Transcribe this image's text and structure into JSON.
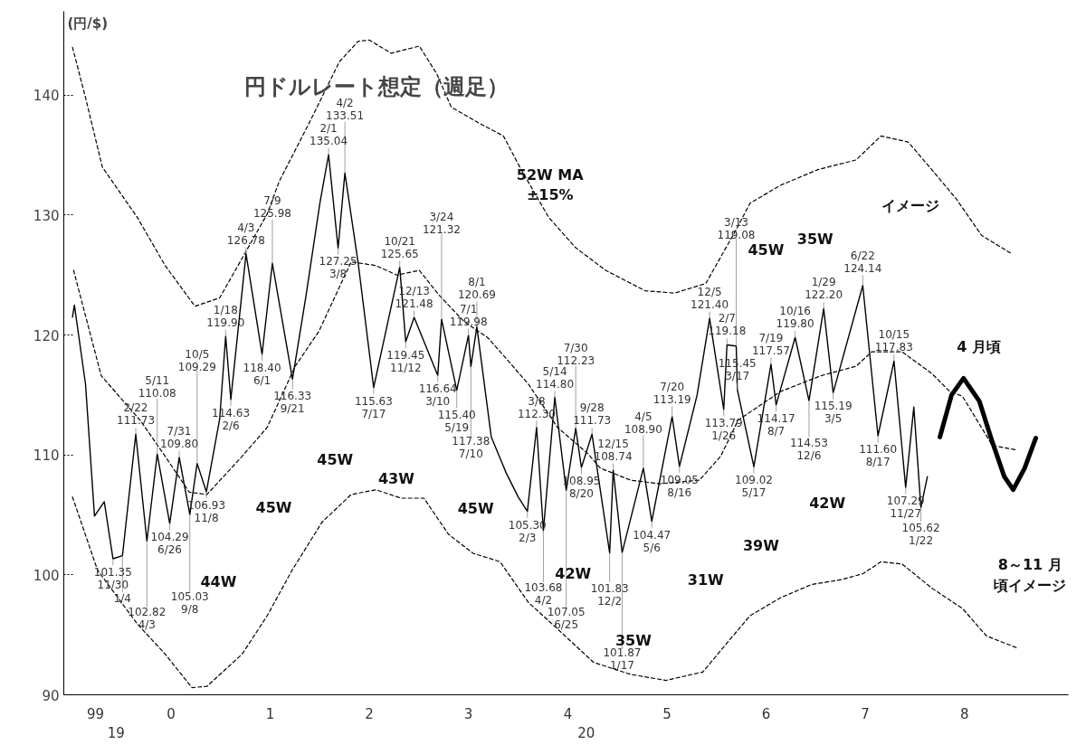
{
  "chart_data": {
    "type": "line",
    "title": "円ドルレート想定（週足）",
    "ylabel": "(円/$)",
    "xlim": [
      "1999-06-02",
      "2009-07-18"
    ],
    "ylim": [
      90,
      147
    ],
    "xticks": [
      {
        "value": "1999-09-27",
        "label": "99"
      },
      {
        "value": "2000-07-01",
        "label": "0"
      },
      {
        "value": "2001-07-01",
        "label": "1"
      },
      {
        "value": "2002-07-01",
        "label": "2"
      },
      {
        "value": "2003-07-01",
        "label": "3"
      },
      {
        "value": "2004-07-01",
        "label": "4"
      },
      {
        "value": "2005-07-01",
        "label": "5"
      },
      {
        "value": "2006-07-01",
        "label": "6"
      },
      {
        "value": "2007-07-01",
        "label": "7"
      },
      {
        "value": "2008-07-01",
        "label": "8"
      }
    ],
    "yticks": [
      90,
      100,
      110,
      120,
      130,
      140
    ],
    "grid": false,
    "marker": "none",
    "series": [
      {
        "color": "#000000",
        "line_style": "solid",
        "x": [
          "1999-07-04",
          "1999-07-11",
          "1999-08-21",
          "1999-09-23",
          "1999-10-29",
          "1999-11-30",
          "2000-01-04",
          "2000-02-22",
          "2000-04-03",
          "2000-05-11",
          "2000-06-26",
          "2000-07-31",
          "2000-09-08",
          "2000-10-05",
          "2000-11-08",
          "2000-12-27",
          "2001-01-18",
          "2001-02-06",
          "2001-04-03",
          "2001-06-01",
          "2001-07-09",
          "2001-09-21",
          "2001-11-10",
          "2001-12-31",
          "2002-02-01",
          "2002-03-08",
          "2002-04-02",
          "2002-05-21",
          "2002-07-17",
          "2002-10-21",
          "2002-11-12",
          "2002-12-13",
          "2003-03-10",
          "2003-03-24",
          "2003-05-19",
          "2003-07-01",
          "2003-07-10",
          "2003-08-01",
          "2003-09-23",
          "2003-11-17",
          "2003-12-31",
          "2004-02-03",
          "2004-03-08",
          "2004-04-02",
          "2004-05-14",
          "2004-06-25",
          "2004-07-30",
          "2004-08-20",
          "2004-09-28",
          "2004-12-02",
          "2004-12-15",
          "2005-01-17",
          "2005-04-05",
          "2005-05-06",
          "2005-07-20",
          "2005-08-16",
          "2005-10-20",
          "2005-12-05",
          "2006-01-26",
          "2006-02-07",
          "2006-03-13",
          "2006-03-17",
          "2006-05-17",
          "2006-07-19",
          "2006-08-07",
          "2006-10-16",
          "2006-12-06",
          "2007-01-29",
          "2007-03-05",
          "2007-06-22",
          "2007-08-17",
          "2007-10-15",
          "2007-11-27",
          "2007-12-27",
          "2008-01-22",
          "2008-02-15"
        ],
        "values": [
          121.5,
          122.5,
          115.9,
          104.9,
          106.1,
          101.35,
          101.6,
          111.73,
          102.82,
          110.08,
          104.29,
          109.8,
          105.03,
          109.29,
          106.93,
          113,
          119.9,
          114.63,
          126.78,
          118.4,
          125.98,
          116.33,
          123.3,
          131,
          135.04,
          127.25,
          133.51,
          126,
          115.63,
          125.65,
          119.45,
          121.48,
          116.64,
          121.32,
          115.4,
          119.98,
          117.38,
          120.69,
          111.5,
          108.5,
          106.5,
          105.3,
          112.3,
          103.68,
          114.8,
          107.05,
          112.23,
          108.95,
          111.73,
          101.83,
          108.74,
          101.87,
          108.9,
          104.47,
          113.19,
          109.05,
          115,
          121.4,
          113.79,
          119.18,
          119.08,
          115.45,
          109.02,
          117.57,
          114.17,
          119.8,
          114.53,
          122.2,
          115.19,
          124.14,
          111.6,
          117.83,
          107.29,
          114,
          105.62,
          108.2
        ]
      },
      {
        "color": "#000000",
        "line_style": "dashed",
        "x": [
          "1999-07-04",
          "1999-08-21",
          "1999-10-22",
          "2000-02-28",
          "2000-06-09",
          "2000-09-27",
          "2000-12-27",
          "2001-06-20",
          "2001-08-03",
          "2001-11-24",
          "2002-03-13",
          "2002-05-21",
          "2002-07-01",
          "2002-09-20",
          "2003-01-01",
          "2003-03-06",
          "2003-04-29",
          "2003-08-07",
          "2003-11-07",
          "2004-01-11",
          "2004-04-22",
          "2004-07-29",
          "2004-11-17",
          "2005-04-11",
          "2005-07-29",
          "2005-11-21",
          "2006-03-13",
          "2006-05-03",
          "2006-08-24",
          "2007-01-08",
          "2007-05-28",
          "2007-08-28",
          "2007-12-06",
          "2008-03-02",
          "2008-06-02",
          "2008-09-02",
          "2008-12-20"
        ],
        "values": [
          144,
          139.8,
          134,
          129.8,
          125.8,
          122.4,
          123.1,
          130.1,
          132.8,
          137.8,
          142.8,
          144.5,
          144.6,
          143.5,
          144.1,
          141.8,
          139,
          137.7,
          136.6,
          133.8,
          129.8,
          127.3,
          125.4,
          123.7,
          123.5,
          124.3,
          128.8,
          131,
          132.5,
          133.8,
          134.6,
          136.6,
          136.1,
          133.8,
          131.3,
          128.3,
          126.8
        ]
      },
      {
        "color": "#000000",
        "line_style": "dashed",
        "x": [
          "1999-07-08",
          "1999-10-18",
          "2000-03-09",
          "2000-06-09",
          "2000-09-06",
          "2000-11-10",
          "2001-03-20",
          "2001-06-20",
          "2001-10-01",
          "2001-12-27",
          "2002-04-25",
          "2002-07-25",
          "2002-10-11",
          "2003-01-01",
          "2003-03-16",
          "2003-06-16",
          "2003-09-09",
          "2003-11-07",
          "2004-02-07",
          "2004-05-24",
          "2004-09-13",
          "2004-10-29",
          "2005-02-17",
          "2005-06-06",
          "2005-10-29",
          "2006-01-15",
          "2006-03-20",
          "2006-08-24",
          "2007-01-18",
          "2007-05-28",
          "2007-07-25",
          "2007-11-14",
          "2008-03-02",
          "2008-05-07",
          "2008-06-23",
          "2008-10-11",
          "2009-01-11"
        ],
        "values": [
          125.4,
          116.6,
          112.9,
          109.9,
          106.9,
          106.7,
          109.9,
          112.3,
          117.4,
          120.3,
          126.1,
          125.8,
          125,
          125.4,
          123.3,
          121.1,
          119.8,
          118.3,
          115.9,
          112.3,
          110.1,
          108.9,
          107.9,
          107.6,
          107.9,
          109.9,
          112.9,
          115.3,
          116.6,
          117.4,
          118.6,
          118.6,
          116.8,
          115.3,
          114.9,
          110.8,
          110.4
        ]
      },
      {
        "color": "#000000",
        "line_style": "dashed",
        "x": [
          "1999-07-04",
          "1999-10-04",
          "2000-02-28",
          "2000-06-09",
          "2000-09-16",
          "2000-11-10",
          "2001-03-20",
          "2001-06-20",
          "2001-09-20",
          "2002-01-08",
          "2002-04-25",
          "2002-07-25",
          "2002-10-25",
          "2003-01-18",
          "2003-04-18",
          "2003-07-18",
          "2003-10-25",
          "2004-02-07",
          "2004-05-14",
          "2004-10-04",
          "2005-02-17",
          "2005-06-27",
          "2005-11-10",
          "2006-02-10",
          "2006-05-03",
          "2006-08-24",
          "2006-12-16",
          "2007-04-04",
          "2007-06-23",
          "2007-08-28",
          "2007-11-14",
          "2008-03-02",
          "2008-06-23",
          "2008-09-20",
          "2009-01-11"
        ],
        "values": [
          106.5,
          100.4,
          95.9,
          93.4,
          90.6,
          90.7,
          93.4,
          96.6,
          100.4,
          104.4,
          106.7,
          107.1,
          106.4,
          106.4,
          103.4,
          101.8,
          101.1,
          97.7,
          95.7,
          92.7,
          91.7,
          91.2,
          91.9,
          94.4,
          96.6,
          98.1,
          99.2,
          99.6,
          100.1,
          101.1,
          100.9,
          98.9,
          97.2,
          94.9,
          93.9
        ]
      },
      {
        "color": "#000000",
        "line_style": "solid",
        "x": [
          "2008-04-01",
          "2008-05-14",
          "2008-06-27",
          "2008-08-24",
          "2008-10-11",
          "2008-11-24",
          "2008-12-27",
          "2009-02-07",
          "2009-03-20"
        ],
        "values": [
          111.5,
          115.0,
          116.4,
          114.5,
          111.1,
          108.2,
          107.1,
          108.9,
          111.4
        ]
      }
    ],
    "annotations": [
      {
        "text": "2/22\n111.73",
        "x": "2000-02-22",
        "y": 111.73
      },
      {
        "text": "5/11\n110.08",
        "x": "2000-05-11",
        "y": 110.08
      },
      {
        "text": "7/31\n109.80",
        "x": "2000-07-31",
        "y": 109.8
      },
      {
        "text": "10/5\n109.29",
        "x": "2000-10-05",
        "y": 109.29
      },
      {
        "text": "114.63\n2/6",
        "x": "2001-02-06",
        "y": 114.63
      },
      {
        "text": "106.93\n11/8",
        "x": "2000-11-08",
        "y": 106.93
      },
      {
        "text": "105.03\n9/8",
        "x": "2000-09-08",
        "y": 105.03
      },
      {
        "text": "1/4",
        "x": "2000-01-04",
        "y": 101.6
      },
      {
        "text": "104.29\n6/26",
        "x": "2000-06-26",
        "y": 104.29
      },
      {
        "text": "102.82\n4/3",
        "x": "2000-04-03",
        "y": 102.82
      },
      {
        "text": "101.35\n11/30",
        "x": "1999-11-30",
        "y": 101.35
      },
      {
        "text": "4/3\n126.78",
        "x": "2001-04-03",
        "y": 126.78
      },
      {
        "text": "7/9\n125.98",
        "x": "2001-07-09",
        "y": 125.98
      },
      {
        "text": "1/18\n119.90",
        "x": "2001-01-18",
        "y": 119.9
      },
      {
        "text": "118.40\n6/1",
        "x": "2001-06-01",
        "y": 118.4
      },
      {
        "text": "116.33\n9/21",
        "x": "2001-09-21",
        "y": 116.33
      },
      {
        "text": "2/1\n135.04",
        "x": "2002-02-01",
        "y": 135.04
      },
      {
        "text": "4/2\n133.51",
        "x": "2002-04-02",
        "y": 133.51
      },
      {
        "text": "127.25\n3/8",
        "x": "2002-03-08",
        "y": 127.25
      },
      {
        "text": "115.63\n7/17",
        "x": "2002-07-17",
        "y": 115.63
      },
      {
        "text": "10/21\n125.65",
        "x": "2002-10-21",
        "y": 125.65
      },
      {
        "text": "3/24\n121.32",
        "x": "2003-03-24",
        "y": 121.32
      },
      {
        "text": "12/13\n121.48",
        "x": "2002-12-13",
        "y": 121.48
      },
      {
        "text": "8/1\n120.69",
        "x": "2003-08-01",
        "y": 120.69
      },
      {
        "text": "7/1\n119.98",
        "x": "2003-07-01",
        "y": 119.98
      },
      {
        "text": "119.45\n11/12",
        "x": "2002-11-12",
        "y": 119.45
      },
      {
        "text": "117.38\n7/10",
        "x": "2003-07-10",
        "y": 117.38
      },
      {
        "text": "116.64\n3/10",
        "x": "2003-03-10",
        "y": 116.64
      },
      {
        "text": "115.40\n5/19",
        "x": "2003-05-19",
        "y": 115.4
      },
      {
        "text": "3/8\n112.30",
        "x": "2004-03-08",
        "y": 112.3
      },
      {
        "text": "5/14\n114.80",
        "x": "2004-05-14",
        "y": 114.8
      },
      {
        "text": "7/30\n112.23",
        "x": "2004-07-30",
        "y": 112.23
      },
      {
        "text": "9/28\n111.73",
        "x": "2004-09-28",
        "y": 111.73
      },
      {
        "text": "12/15\n108.74",
        "x": "2004-12-15",
        "y": 108.74
      },
      {
        "text": "108.95\n8/20",
        "x": "2004-08-20",
        "y": 108.95
      },
      {
        "text": "107.05\n6/25",
        "x": "2004-06-25",
        "y": 107.05
      },
      {
        "text": "105.30\n2/3",
        "x": "2004-02-03",
        "y": 105.3
      },
      {
        "text": "103.68\n4/2",
        "x": "2004-04-02",
        "y": 103.68
      },
      {
        "text": "101.87\n1/17",
        "x": "2005-01-17",
        "y": 101.87
      },
      {
        "text": "101.83\n12/2",
        "x": "2004-12-02",
        "y": 101.83
      },
      {
        "text": "104.47\n5/6",
        "x": "2005-05-06",
        "y": 104.47
      },
      {
        "text": "4/5\n108.90",
        "x": "2005-04-05",
        "y": 108.9
      },
      {
        "text": "7/20\n113.19",
        "x": "2005-07-20",
        "y": 113.19
      },
      {
        "text": "109.05\n8/16",
        "x": "2005-08-16",
        "y": 109.05
      },
      {
        "text": "12/5\n121.40",
        "x": "2005-12-05",
        "y": 121.4
      },
      {
        "text": "2/7\n119.18",
        "x": "2006-02-07",
        "y": 119.18
      },
      {
        "text": "3/13\n119.08",
        "x": "2006-03-13",
        "y": 119.08
      },
      {
        "text": "115.45\n3/17",
        "x": "2006-03-17",
        "y": 115.45
      },
      {
        "text": "113.79\n1/26",
        "x": "2006-01-26",
        "y": 113.79
      },
      {
        "text": "10/16\n119.80",
        "x": "2006-10-16",
        "y": 119.8
      },
      {
        "text": "1/29\n122.20",
        "x": "2007-01-29",
        "y": 122.2
      },
      {
        "text": "7/19\n117.57",
        "x": "2006-07-19",
        "y": 117.57
      },
      {
        "text": "6/22\n124.14",
        "x": "2007-06-22",
        "y": 124.14
      },
      {
        "text": "10/15\n117.83",
        "x": "2007-10-15",
        "y": 117.83
      },
      {
        "text": "115.19\n3/5",
        "x": "2007-03-05",
        "y": 115.19
      },
      {
        "text": "114.53\n12/6",
        "x": "2006-12-06",
        "y": 114.53
      },
      {
        "text": "114.17\n8/7",
        "x": "2006-08-07",
        "y": 114.17
      },
      {
        "text": "109.02\n5/17",
        "x": "2006-05-17",
        "y": 109.02
      },
      {
        "text": "111.60\n8/17",
        "x": "2007-08-17",
        "y": 111.6
      },
      {
        "text": "107.29\n11/27",
        "x": "2007-11-27",
        "y": 107.29
      },
      {
        "text": "105.62\n1/22",
        "x": "2008-01-22",
        "y": 105.62
      },
      "44W",
      "45W",
      "45W",
      "43W",
      "45W",
      "42W",
      "35W",
      "31W",
      "39W",
      "42W",
      "45W",
      "35W",
      "52W MA±15%",
      "イメージ",
      "4 月頃",
      "8～11 月頃イメージ",
      "19",
      "20"
    ]
  }
}
